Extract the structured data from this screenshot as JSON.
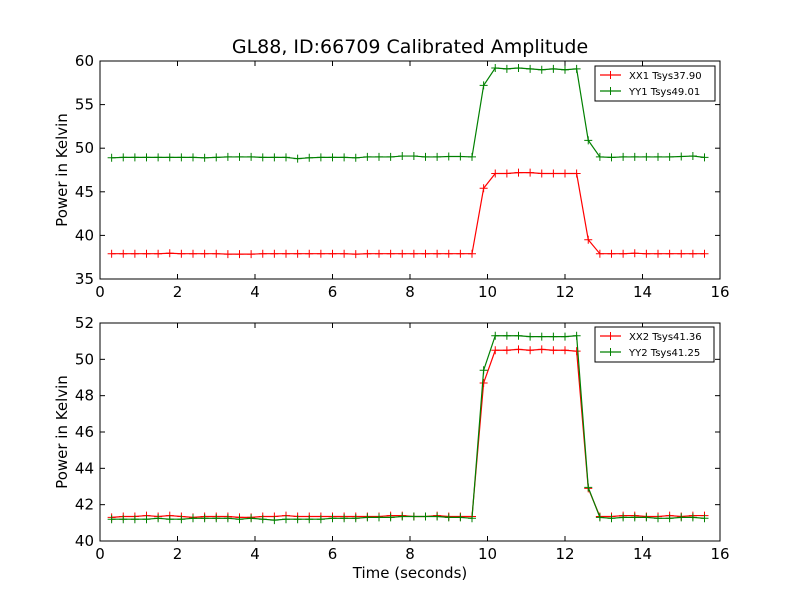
{
  "figure": {
    "title": "GL88, ID:66709 Calibrated Amplitude"
  },
  "chart_data": [
    {
      "type": "line",
      "xlabel": "",
      "ylabel": "Power in Kelvin",
      "xlim": [
        0,
        16
      ],
      "ylim": [
        35,
        60
      ],
      "xticks": [
        0,
        2,
        4,
        6,
        8,
        10,
        12,
        14,
        16
      ],
      "yticks": [
        35,
        40,
        45,
        50,
        55,
        60
      ],
      "grid": false,
      "legend_position": "top-right",
      "x": [
        0.3,
        0.6,
        0.9,
        1.2,
        1.5,
        1.8,
        2.1,
        2.4,
        2.7,
        3.0,
        3.3,
        3.6,
        3.9,
        4.2,
        4.5,
        4.8,
        5.1,
        5.4,
        5.7,
        6.0,
        6.3,
        6.6,
        6.9,
        7.2,
        7.5,
        7.8,
        8.1,
        8.4,
        8.7,
        9.0,
        9.3,
        9.6,
        9.9,
        10.2,
        10.5,
        10.8,
        11.1,
        11.4,
        11.7,
        12.0,
        12.3,
        12.6,
        12.9,
        13.2,
        13.5,
        13.8,
        14.1,
        14.4,
        14.7,
        15.0,
        15.3,
        15.6
      ],
      "series": [
        {
          "name": "XX1 Tsys37.90",
          "color": "#ff0000",
          "values": [
            37.9,
            37.9,
            37.9,
            37.9,
            37.9,
            37.95,
            37.9,
            37.9,
            37.9,
            37.9,
            37.85,
            37.85,
            37.85,
            37.9,
            37.9,
            37.9,
            37.9,
            37.9,
            37.9,
            37.9,
            37.9,
            37.85,
            37.9,
            37.9,
            37.9,
            37.9,
            37.9,
            37.9,
            37.9,
            37.9,
            37.9,
            37.9,
            45.4,
            47.1,
            47.1,
            47.2,
            47.2,
            47.1,
            47.1,
            47.1,
            47.1,
            39.5,
            37.9,
            37.9,
            37.9,
            37.95,
            37.9,
            37.9,
            37.9,
            37.9,
            37.9,
            37.9
          ]
        },
        {
          "name": "YY1 Tsys49.01",
          "color": "#008000",
          "values": [
            48.9,
            48.95,
            48.95,
            48.95,
            48.95,
            48.95,
            48.95,
            48.95,
            48.9,
            48.95,
            49.0,
            49.0,
            49.0,
            48.95,
            48.95,
            48.95,
            48.8,
            48.9,
            48.95,
            48.95,
            48.95,
            48.9,
            49.0,
            49.0,
            49.0,
            49.1,
            49.1,
            49.0,
            49.0,
            49.05,
            49.05,
            49.0,
            57.2,
            59.2,
            59.1,
            59.2,
            59.1,
            59.0,
            59.1,
            59.0,
            59.1,
            50.9,
            49.0,
            48.95,
            49.0,
            49.0,
            49.0,
            49.0,
            49.0,
            49.05,
            49.1,
            48.95
          ]
        }
      ]
    },
    {
      "type": "line",
      "xlabel": "Time (seconds)",
      "ylabel": "Power in Kelvin",
      "xlim": [
        0,
        16
      ],
      "ylim": [
        40,
        52
      ],
      "xticks": [
        0,
        2,
        4,
        6,
        8,
        10,
        12,
        14,
        16
      ],
      "yticks": [
        40,
        42,
        44,
        46,
        48,
        50,
        52
      ],
      "grid": false,
      "legend_position": "top-right",
      "x": [
        0.3,
        0.6,
        0.9,
        1.2,
        1.5,
        1.8,
        2.1,
        2.4,
        2.7,
        3.0,
        3.3,
        3.6,
        3.9,
        4.2,
        4.5,
        4.8,
        5.1,
        5.4,
        5.7,
        6.0,
        6.3,
        6.6,
        6.9,
        7.2,
        7.5,
        7.8,
        8.1,
        8.4,
        8.7,
        9.0,
        9.3,
        9.6,
        9.9,
        10.2,
        10.5,
        10.8,
        11.1,
        11.4,
        11.7,
        12.0,
        12.3,
        12.6,
        12.9,
        13.2,
        13.5,
        13.8,
        14.1,
        14.4,
        14.7,
        15.0,
        15.3,
        15.6
      ],
      "series": [
        {
          "name": "XX2 Tsys41.36",
          "color": "#ff0000",
          "values": [
            41.3,
            41.35,
            41.35,
            41.4,
            41.35,
            41.4,
            41.35,
            41.3,
            41.35,
            41.35,
            41.35,
            41.3,
            41.3,
            41.35,
            41.35,
            41.4,
            41.35,
            41.35,
            41.35,
            41.35,
            41.35,
            41.35,
            41.35,
            41.35,
            41.4,
            41.4,
            41.35,
            41.35,
            41.4,
            41.35,
            41.35,
            41.35,
            48.7,
            50.5,
            50.5,
            50.55,
            50.5,
            50.55,
            50.5,
            50.5,
            50.45,
            42.9,
            41.35,
            41.35,
            41.4,
            41.4,
            41.35,
            41.35,
            41.4,
            41.35,
            41.4,
            41.4
          ]
        },
        {
          "name": "YY2 Tsys41.25",
          "color": "#008000",
          "values": [
            41.2,
            41.2,
            41.2,
            41.2,
            41.25,
            41.2,
            41.2,
            41.25,
            41.25,
            41.25,
            41.25,
            41.2,
            41.25,
            41.2,
            41.15,
            41.2,
            41.2,
            41.2,
            41.2,
            41.25,
            41.25,
            41.25,
            41.3,
            41.3,
            41.3,
            41.35,
            41.35,
            41.35,
            41.35,
            41.3,
            41.3,
            41.25,
            49.4,
            51.3,
            51.3,
            51.3,
            51.25,
            51.25,
            51.25,
            51.25,
            51.3,
            42.95,
            41.3,
            41.25,
            41.3,
            41.3,
            41.3,
            41.25,
            41.25,
            41.3,
            41.3,
            41.25
          ]
        }
      ]
    }
  ]
}
